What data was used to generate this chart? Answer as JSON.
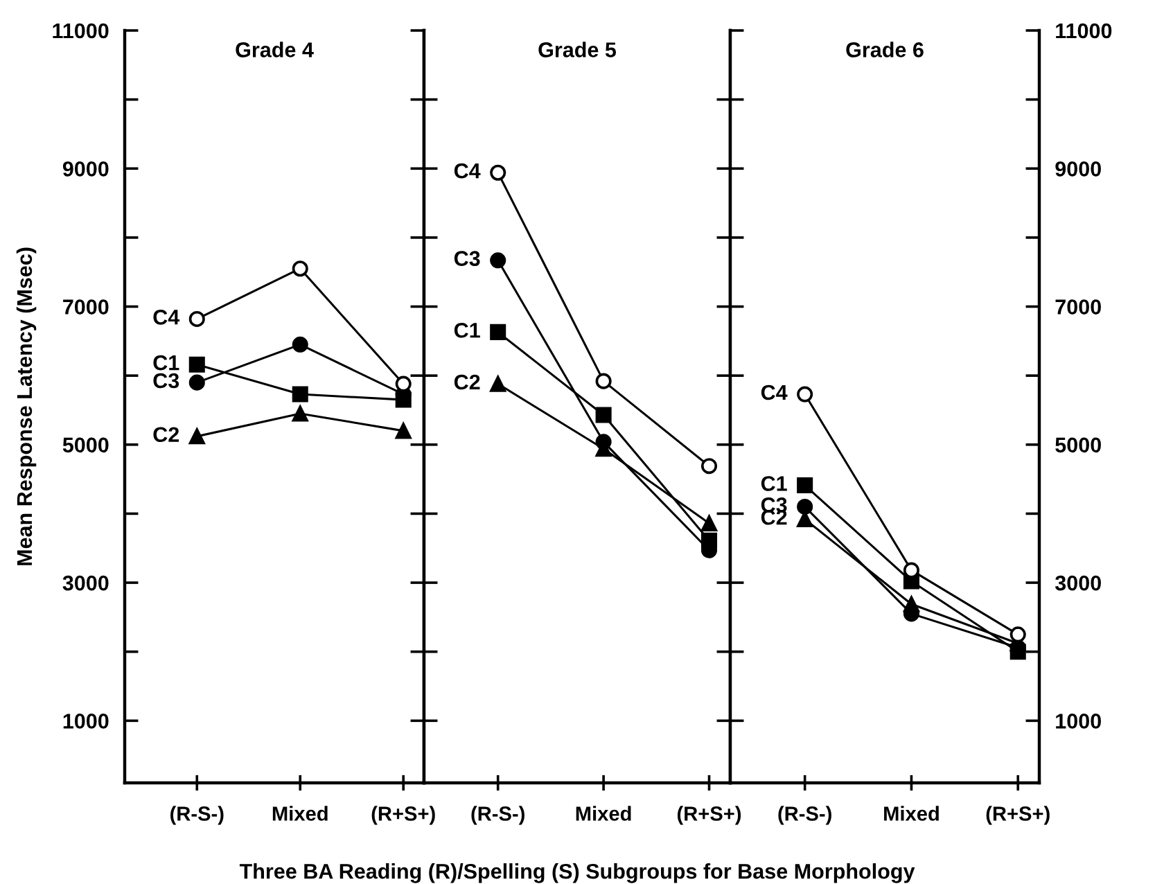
{
  "chart_data": [
    {
      "type": "line",
      "title": "Grade 4",
      "ylabel": "Mean Response Latency (Msec)",
      "categories": [
        "(R-S-)",
        "Mixed",
        "(R+S+)"
      ],
      "ylim": [
        100,
        11000
      ],
      "yticks": [
        {
          "value": 1000,
          "label": "1000"
        },
        {
          "value": 2000,
          "label": null
        },
        {
          "value": 3000,
          "label": "3000"
        },
        {
          "value": 4000,
          "label": null
        },
        {
          "value": 5000,
          "label": "5000"
        },
        {
          "value": 6000,
          "label": null
        },
        {
          "value": 7000,
          "label": "7000"
        },
        {
          "value": 8000,
          "label": null
        },
        {
          "value": 9000,
          "label": "9000"
        },
        {
          "value": 10000,
          "label": null
        },
        {
          "value": 11000,
          "label": "11000"
        }
      ],
      "series": [
        {
          "name": "C1",
          "color": "#000000",
          "marker": "square",
          "values": [
            6160,
            5730,
            5650
          ]
        },
        {
          "name": "C2",
          "color": "#000000",
          "marker": "triangle",
          "values": [
            5120,
            5450,
            5200
          ]
        },
        {
          "name": "C3",
          "color": "#000000",
          "marker": "circle",
          "values": [
            5900,
            6450,
            5730
          ]
        },
        {
          "name": "C4",
          "color": "#000000",
          "marker": "circle",
          "values": [
            6820,
            7550,
            5880
          ]
        }
      ]
    },
    {
      "type": "line",
      "title": "Grade 5",
      "xlabel": "Three BA Reading (R)/Spelling (S) Subgroups for Base Morphology",
      "categories": [
        "(R-S-)",
        "Mixed",
        "(R+S+)"
      ],
      "ylim": [
        100,
        11000
      ],
      "yticks": [
        {
          "value": 1000,
          "label": null
        },
        {
          "value": 2000,
          "label": null
        },
        {
          "value": 3000,
          "label": null
        },
        {
          "value": 4000,
          "label": null
        },
        {
          "value": 5000,
          "label": null
        },
        {
          "value": 6000,
          "label": null
        },
        {
          "value": 7000,
          "label": null
        },
        {
          "value": 8000,
          "label": null
        },
        {
          "value": 9000,
          "label": null
        },
        {
          "value": 10000,
          "label": null
        }
      ],
      "tick_labels": "x",
      "series": [
        {
          "name": "C1",
          "color": "#000000",
          "marker": "square",
          "values": [
            6630,
            5430,
            3610
          ]
        },
        {
          "name": "C2",
          "color": "#000000",
          "marker": "triangle",
          "values": [
            5880,
            4940,
            3860
          ]
        },
        {
          "name": "C3",
          "color": "#000000",
          "marker": "circle",
          "values": [
            7670,
            5040,
            3470
          ]
        },
        {
          "name": "C4",
          "color": "#000000",
          "marker": "circle",
          "values": [
            8940,
            5920,
            4690
          ]
        }
      ]
    },
    {
      "type": "line",
      "title": "Grade 6",
      "categories": [
        "(R-S-)",
        "Mixed",
        "(R+S+)"
      ],
      "ylim": [
        100,
        11000
      ],
      "yticks": [
        {
          "value": 1000,
          "label": "1000"
        },
        {
          "value": 2000,
          "label": null
        },
        {
          "value": 3000,
          "label": "3000"
        },
        {
          "value": 4000,
          "label": null
        },
        {
          "value": 5000,
          "label": "5000"
        },
        {
          "value": 6000,
          "label": null
        },
        {
          "value": 7000,
          "label": "7000"
        },
        {
          "value": 8000,
          "label": null
        },
        {
          "value": 9000,
          "label": "9000"
        },
        {
          "value": 10000,
          "label": null
        },
        {
          "value": 11000,
          "label": "11000"
        }
      ],
      "series": [
        {
          "name": "C1",
          "color": "#000000",
          "marker": "square",
          "values": [
            4410,
            3020,
            2000
          ]
        },
        {
          "name": "C2",
          "color": "#000000",
          "marker": "triangle",
          "values": [
            3920,
            2690,
            2120
          ]
        },
        {
          "name": "C3",
          "color": "#000000",
          "marker": "circle",
          "values": [
            4100,
            2550,
            2060
          ]
        },
        {
          "name": "C4",
          "color": "#000000",
          "marker": "circle",
          "values": [
            5730,
            3180,
            2250
          ]
        }
      ]
    }
  ]
}
